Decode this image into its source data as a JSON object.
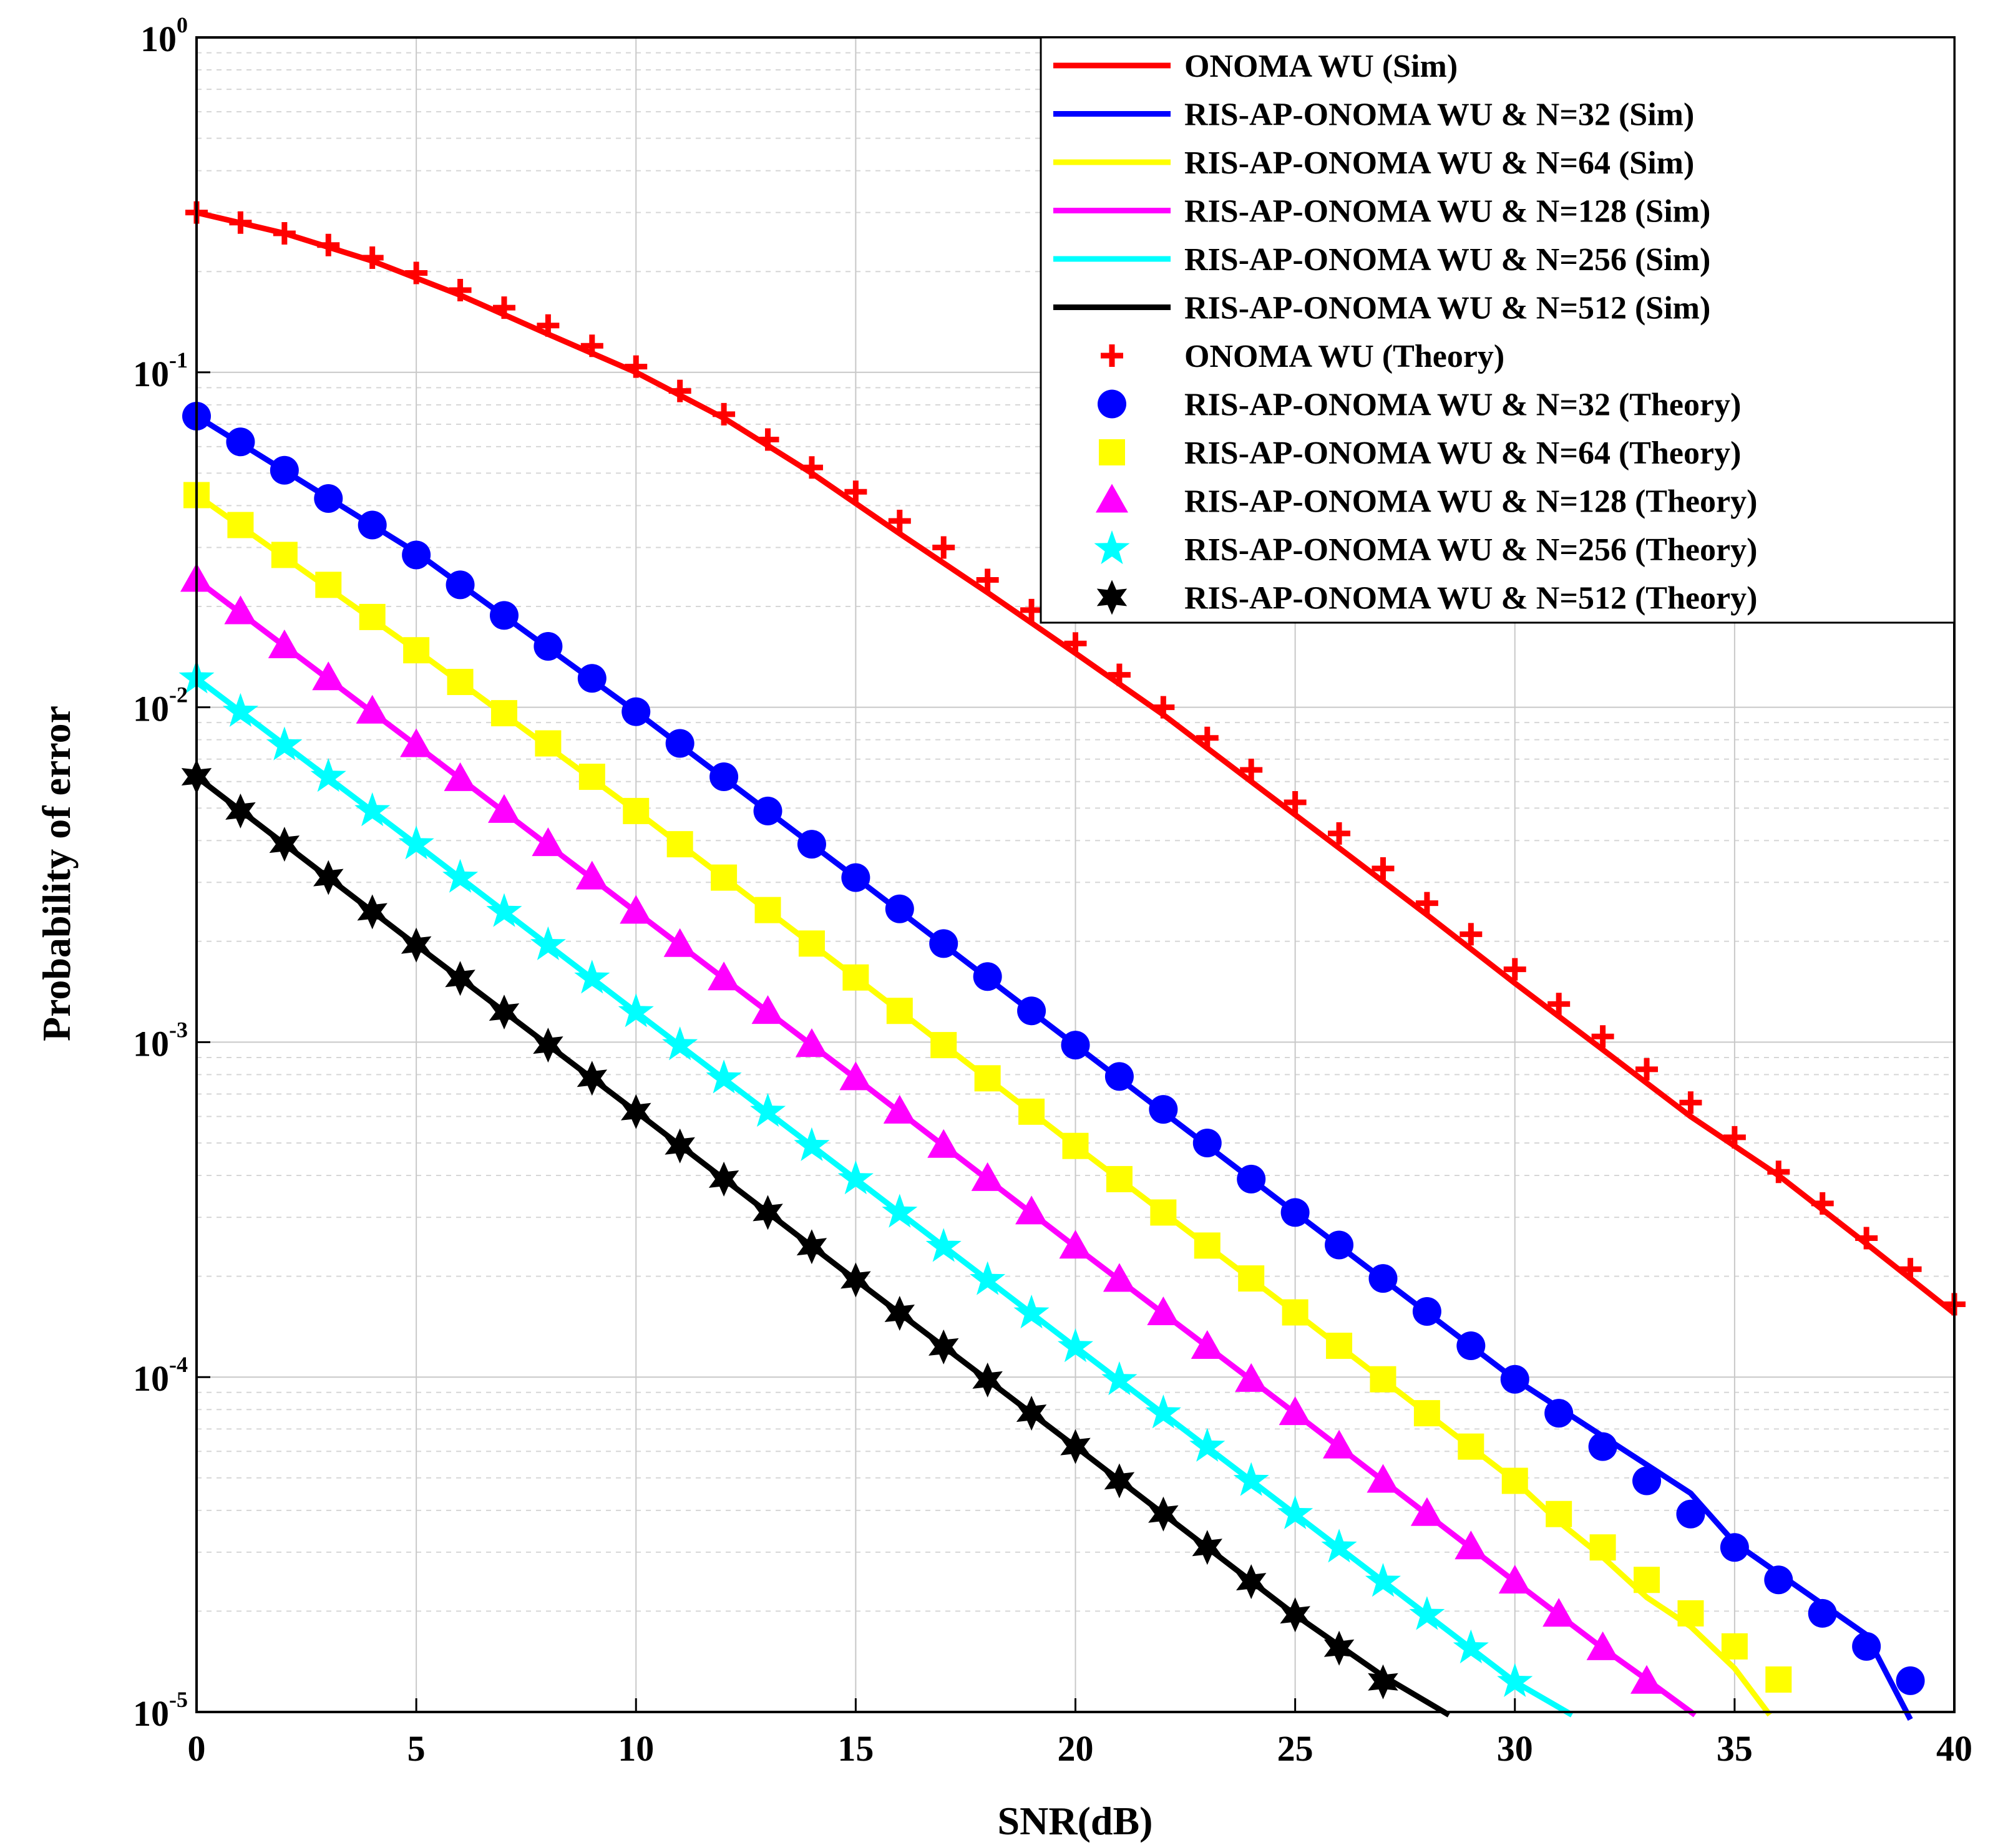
{
  "chart_data": {
    "type": "line",
    "title": "",
    "xlabel": "SNR(dB)",
    "ylabel": "Probability of error",
    "xlim": [
      0,
      40
    ],
    "ylim": [
      1e-05,
      1
    ],
    "yscale": "log",
    "grid": true,
    "minor_grid": true,
    "legend_position": "top-right",
    "x_ticks": [
      "0",
      "5",
      "10",
      "15",
      "20",
      "25",
      "30",
      "35",
      "40"
    ],
    "y_ticks": [
      {
        "base": "10",
        "exp": "0"
      },
      {
        "base": "10",
        "exp": "-1"
      },
      {
        "base": "10",
        "exp": "-2"
      },
      {
        "base": "10",
        "exp": "-3"
      },
      {
        "base": "10",
        "exp": "-4"
      },
      {
        "base": "10",
        "exp": "-5"
      }
    ],
    "series": [
      {
        "name": "ONOMA WU (Sim)",
        "kind": "sim",
        "color": "#ff0000",
        "x": [
          0,
          2,
          4,
          6,
          8,
          10,
          12,
          14,
          16,
          18,
          20,
          22,
          24,
          26,
          28,
          30,
          32,
          34,
          36,
          38,
          40
        ],
        "values": [
          0.3,
          0.26,
          0.215,
          0.17,
          0.13,
          0.1,
          0.073,
          0.05,
          0.033,
          0.022,
          0.0145,
          0.0095,
          0.006,
          0.0038,
          0.0024,
          0.0015,
          0.00095,
          0.0006,
          0.0004,
          0.00025,
          0.000155
        ]
      },
      {
        "name": "RIS-AP-ONOMA WU & N=32 (Sim)",
        "kind": "sim",
        "color": "#0000ff",
        "x": [
          0,
          5,
          10,
          15,
          20,
          25,
          30,
          34,
          35,
          38,
          39
        ],
        "values": [
          0.074,
          0.029,
          0.0097,
          0.0031,
          0.00098,
          0.00031,
          9.85e-05,
          4.5e-05,
          3.2e-05,
          1.7e-05,
          9.5e-06
        ]
      },
      {
        "name": "RIS-AP-ONOMA WU & N=64 (Sim)",
        "kind": "sim",
        "color": "#ffff00",
        "x": [
          0,
          5,
          10,
          15,
          20,
          25,
          30,
          31,
          32,
          33,
          34,
          35,
          35.8
        ],
        "values": [
          0.043,
          0.0148,
          0.0049,
          0.00156,
          0.00049,
          0.000156,
          4.9e-05,
          3.7e-05,
          2.9e-05,
          2.2e-05,
          1.8e-05,
          1.35e-05,
          9.8e-06
        ]
      },
      {
        "name": "RIS-AP-ONOMA WU & N=128 (Sim)",
        "kind": "sim",
        "color": "#ff00ff",
        "x": [
          0,
          5,
          10,
          15,
          20,
          25,
          30,
          32,
          33,
          34.1
        ],
        "values": [
          0.024,
          0.0077,
          0.00245,
          0.00078,
          0.000245,
          7.8e-05,
          2.45e-05,
          1.55e-05,
          1.25e-05,
          9.8e-06
        ]
      },
      {
        "name": "RIS-AP-ONOMA WU & N=256 (Sim)",
        "kind": "sim",
        "color": "#00ffff",
        "x": [
          0,
          5,
          10,
          15,
          20,
          25,
          30,
          31.3
        ],
        "values": [
          0.0122,
          0.0039,
          0.00123,
          0.00039,
          0.000123,
          3.9e-05,
          1.23e-05,
          9.8e-06
        ]
      },
      {
        "name": "RIS-AP-ONOMA WU & N=512 (Sim)",
        "kind": "sim",
        "color": "#000000",
        "x": [
          0,
          5,
          10,
          15,
          20,
          25,
          27,
          28.5
        ],
        "values": [
          0.0062,
          0.00195,
          0.00062,
          0.000195,
          6.2e-05,
          1.95e-05,
          1.28e-05,
          9.8e-06
        ]
      },
      {
        "name": "ONOMA WU (Theory)",
        "kind": "theory",
        "marker": "plus",
        "color": "#ff0000",
        "x": [
          0,
          1,
          2,
          3,
          4,
          5,
          6,
          7,
          8,
          9,
          10,
          11,
          12,
          13,
          14,
          15,
          16,
          17,
          18,
          19,
          20,
          21,
          22,
          23,
          24,
          25,
          26,
          27,
          28,
          29,
          30,
          31,
          32,
          33,
          34,
          35,
          36,
          37,
          38,
          39,
          40
        ],
        "values": [
          0.3,
          0.28,
          0.26,
          0.24,
          0.22,
          0.198,
          0.176,
          0.156,
          0.138,
          0.12,
          0.104,
          0.088,
          0.075,
          0.063,
          0.052,
          0.044,
          0.036,
          0.03,
          0.024,
          0.0195,
          0.0155,
          0.0125,
          0.01,
          0.0081,
          0.0065,
          0.0052,
          0.0042,
          0.0033,
          0.0026,
          0.0021,
          0.00165,
          0.0013,
          0.00104,
          0.00083,
          0.00066,
          0.00052,
          0.00041,
          0.00033,
          0.00026,
          0.00021,
          0.000165
        ]
      },
      {
        "name": "RIS-AP-ONOMA WU & N=32 (Theory)",
        "kind": "theory",
        "marker": "circle",
        "color": "#0000ff",
        "x": [
          0,
          1,
          2,
          3,
          4,
          5,
          6,
          7,
          8,
          9,
          10,
          11,
          12,
          13,
          14,
          15,
          16,
          17,
          18,
          19,
          20,
          21,
          22,
          23,
          24,
          25,
          26,
          27,
          28,
          29,
          30,
          31,
          32,
          33,
          34,
          35,
          36,
          37,
          38,
          39
        ],
        "values": [
          0.074,
          0.062,
          0.051,
          0.042,
          0.035,
          0.0285,
          0.0232,
          0.0188,
          0.0152,
          0.0122,
          0.0097,
          0.0078,
          0.0062,
          0.0049,
          0.0039,
          0.0031,
          0.0025,
          0.00197,
          0.00157,
          0.00124,
          0.00098,
          0.00079,
          0.00063,
          0.0005,
          0.00039,
          0.00031,
          0.000248,
          0.000197,
          0.000157,
          0.000124,
          9.85e-05,
          7.8e-05,
          6.2e-05,
          4.9e-05,
          3.9e-05,
          3.1e-05,
          2.48e-05,
          1.97e-05,
          1.57e-05,
          1.24e-05
        ]
      },
      {
        "name": "RIS-AP-ONOMA WU & N=64 (Theory)",
        "kind": "theory",
        "marker": "square",
        "color": "#ffff00",
        "x": [
          0,
          1,
          2,
          3,
          4,
          5,
          6,
          7,
          8,
          9,
          10,
          11,
          12,
          13,
          14,
          15,
          16,
          17,
          18,
          19,
          20,
          21,
          22,
          23,
          24,
          25,
          26,
          27,
          28,
          29,
          30,
          31,
          32,
          33,
          34,
          35,
          36
        ],
        "values": [
          0.043,
          0.035,
          0.0285,
          0.0232,
          0.0186,
          0.0148,
          0.0119,
          0.0096,
          0.0078,
          0.0062,
          0.0049,
          0.0039,
          0.0031,
          0.00248,
          0.00197,
          0.00156,
          0.00124,
          0.00098,
          0.00078,
          0.00062,
          0.00049,
          0.00039,
          0.00031,
          0.000247,
          0.000197,
          0.000156,
          0.000124,
          9.85e-05,
          7.8e-05,
          6.2e-05,
          4.9e-05,
          3.9e-05,
          3.1e-05,
          2.48e-05,
          1.97e-05,
          1.57e-05,
          1.25e-05
        ]
      },
      {
        "name": "RIS-AP-ONOMA WU & N=128 (Theory)",
        "kind": "theory",
        "marker": "triangle",
        "color": "#ff00ff",
        "x": [
          0,
          1,
          2,
          3,
          4,
          5,
          6,
          7,
          8,
          9,
          10,
          11,
          12,
          13,
          14,
          15,
          16,
          17,
          18,
          19,
          20,
          21,
          22,
          23,
          24,
          25,
          26,
          27,
          28,
          29,
          30,
          31,
          32,
          33
        ],
        "values": [
          0.024,
          0.0192,
          0.0152,
          0.0122,
          0.0097,
          0.0077,
          0.0061,
          0.0049,
          0.0039,
          0.0031,
          0.00245,
          0.00195,
          0.00155,
          0.00123,
          0.00098,
          0.00078,
          0.00062,
          0.00049,
          0.00039,
          0.00031,
          0.000245,
          0.000195,
          0.000155,
          0.000123,
          9.8e-05,
          7.8e-05,
          6.2e-05,
          4.9e-05,
          3.9e-05,
          3.1e-05,
          2.45e-05,
          1.95e-05,
          1.55e-05,
          1.23e-05
        ]
      },
      {
        "name": "RIS-AP-ONOMA WU & N=256 (Theory)",
        "kind": "theory",
        "marker": "star5",
        "color": "#00ffff",
        "x": [
          0,
          1,
          2,
          3,
          4,
          5,
          6,
          7,
          8,
          9,
          10,
          11,
          12,
          13,
          14,
          15,
          16,
          17,
          18,
          19,
          20,
          21,
          22,
          23,
          24,
          25,
          26,
          27,
          28,
          29,
          30
        ],
        "values": [
          0.0122,
          0.0097,
          0.0077,
          0.0062,
          0.0049,
          0.0039,
          0.0031,
          0.00245,
          0.00195,
          0.00155,
          0.00123,
          0.00098,
          0.00078,
          0.00062,
          0.00049,
          0.00039,
          0.00031,
          0.000245,
          0.000195,
          0.000155,
          0.000123,
          9.8e-05,
          7.8e-05,
          6.2e-05,
          4.9e-05,
          3.9e-05,
          3.1e-05,
          2.45e-05,
          1.95e-05,
          1.55e-05,
          1.23e-05
        ]
      },
      {
        "name": "RIS-AP-ONOMA WU & N=512 (Theory)",
        "kind": "theory",
        "marker": "star6",
        "color": "#000000",
        "x": [
          0,
          1,
          2,
          3,
          4,
          5,
          6,
          7,
          8,
          9,
          10,
          11,
          12,
          13,
          14,
          15,
          16,
          17,
          18,
          19,
          20,
          21,
          22,
          23,
          24,
          25,
          26,
          27
        ],
        "values": [
          0.0062,
          0.0049,
          0.0039,
          0.0031,
          0.00245,
          0.00195,
          0.00155,
          0.00123,
          0.00098,
          0.00078,
          0.00062,
          0.00049,
          0.00039,
          0.00031,
          0.000245,
          0.000195,
          0.000155,
          0.000123,
          9.8e-05,
          7.8e-05,
          6.2e-05,
          4.9e-05,
          3.9e-05,
          3.1e-05,
          2.45e-05,
          1.95e-05,
          1.55e-05,
          1.23e-05
        ]
      }
    ]
  }
}
